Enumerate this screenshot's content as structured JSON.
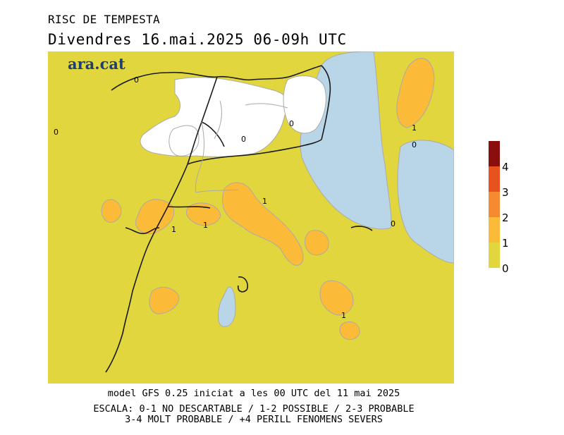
{
  "header": {
    "title": "RISC DE TEMPESTA",
    "subtitle": "Divendres  16.mai.2025 06-09h UTC"
  },
  "logo": {
    "text": "ara.cat"
  },
  "legend": {
    "levels": [
      {
        "label": "4",
        "color": "#8b0e0e"
      },
      {
        "label": "3",
        "color": "#e8521f"
      },
      {
        "label": "2",
        "color": "#f68a30"
      },
      {
        "label": "1",
        "color": "#fbbb38"
      },
      {
        "label": "0",
        "color": "#e2d63f"
      }
    ]
  },
  "map": {
    "colors": {
      "level_0_1": "#e2d63f",
      "level_1_2": "#fbbb38",
      "sea": "#b9d6e8",
      "no_data": "#ffffff",
      "border": "#1a1a1a",
      "region_border": "#aaaaaa"
    },
    "contour_labels": [
      "0",
      "0",
      "0",
      "0",
      "1",
      "0",
      "1",
      "1",
      "1",
      "0",
      "1"
    ]
  },
  "footer": {
    "model_line": "model GFS 0.25 iniciat a les 00 UTC del 11 mai 2025",
    "scale_line1": "ESCALA: 0-1 NO DESCARTABLE / 1-2 POSSIBLE / 2-3 PROBABLE",
    "scale_line2": "3-4 MOLT PROBABLE / +4 PERILL FENOMENS SEVERS"
  }
}
